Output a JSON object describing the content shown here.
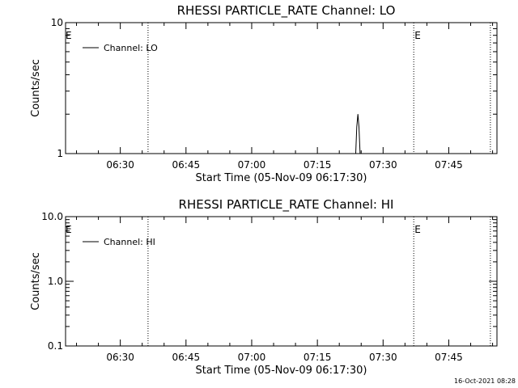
{
  "footer_stamp": "16-Oct-2021 08:28",
  "chart_data": [
    {
      "type": "line",
      "title": "RHESSI PARTICLE_RATE Channel: LO",
      "xlabel": "Start Time (05-Nov-09 06:17:30)",
      "ylabel": "Counts/sec",
      "y_scale": "log",
      "ylim": [
        1,
        10
      ],
      "yticks": [
        1,
        10
      ],
      "ytick_labels": [
        "1",
        "10"
      ],
      "xlim": [
        "06:17:30",
        "07:56:00"
      ],
      "xticks": [
        "06:30",
        "06:45",
        "07:00",
        "07:15",
        "07:30",
        "07:45"
      ],
      "grid": false,
      "legend_position": "top-left",
      "series": [
        {
          "name": "Channel: LO",
          "x": [
            "06:17:30",
            "07:23:45",
            "07:24:00",
            "07:24:15",
            "07:24:30",
            "07:24:45",
            "07:56:00"
          ],
          "y": [
            1,
            1,
            1.6,
            2.0,
            1.6,
            1,
            1
          ]
        }
      ],
      "event_lines": [
        {
          "x": "06:36:20",
          "label": ""
        },
        {
          "x": "07:37:00",
          "label": "E"
        },
        {
          "x": "07:54:30",
          "label": ""
        }
      ],
      "edge_marker": "E"
    },
    {
      "type": "line",
      "title": "RHESSI PARTICLE_RATE Channel: HI",
      "xlabel": "Start Time (05-Nov-09 06:17:30)",
      "ylabel": "Counts/sec",
      "y_scale": "log",
      "ylim": [
        0.1,
        10
      ],
      "yticks": [
        0.1,
        1,
        10
      ],
      "ytick_labels": [
        "0.1",
        "1.0",
        "10.0"
      ],
      "xlim": [
        "06:17:30",
        "07:56:00"
      ],
      "xticks": [
        "06:30",
        "06:45",
        "07:00",
        "07:15",
        "07:30",
        "07:45"
      ],
      "grid": false,
      "legend_position": "top-left",
      "series": [
        {
          "name": "Channel: HI",
          "x": [],
          "y": []
        }
      ],
      "event_lines": [
        {
          "x": "06:36:20",
          "label": ""
        },
        {
          "x": "07:37:00",
          "label": "E"
        },
        {
          "x": "07:54:30",
          "label": ""
        }
      ],
      "edge_marker": "E"
    }
  ]
}
